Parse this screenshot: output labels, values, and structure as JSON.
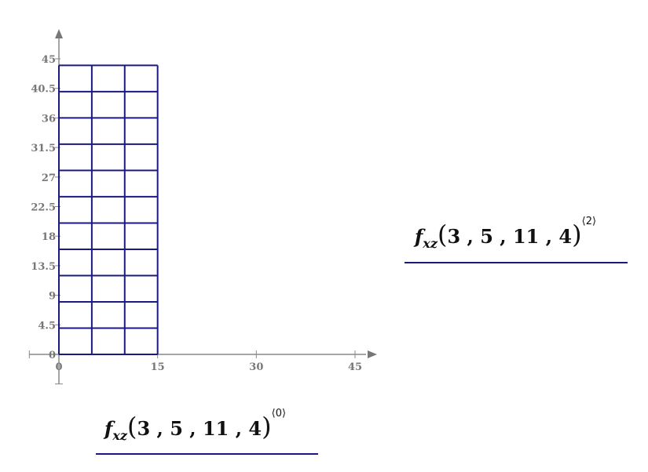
{
  "plot": {
    "x_ticks": [
      "0",
      "15",
      "30",
      "45"
    ],
    "y_ticks": [
      "0",
      "4.5",
      "9",
      "13.5",
      "18",
      "22.5",
      "27",
      "31.5",
      "36",
      "40.5",
      "45"
    ],
    "x_range": [
      -4.5,
      45
    ],
    "y_range": [
      -4.5,
      45
    ],
    "mesh_x": [
      0,
      5,
      10,
      15
    ],
    "mesh_y": [
      0,
      4,
      8,
      12,
      16,
      20,
      24,
      28,
      32,
      36,
      40,
      44
    ],
    "mesh_color": "#1a1a80",
    "axis_color": "#888888"
  },
  "y_expression": {
    "func": "f",
    "sub": "xz",
    "args": "3 , 5 , 11 , 4",
    "super": "⟨2⟩"
  },
  "x_expression": {
    "func": "f",
    "sub": "xz",
    "args": "3 , 5 , 11 , 4",
    "super": "⟨0⟩"
  }
}
